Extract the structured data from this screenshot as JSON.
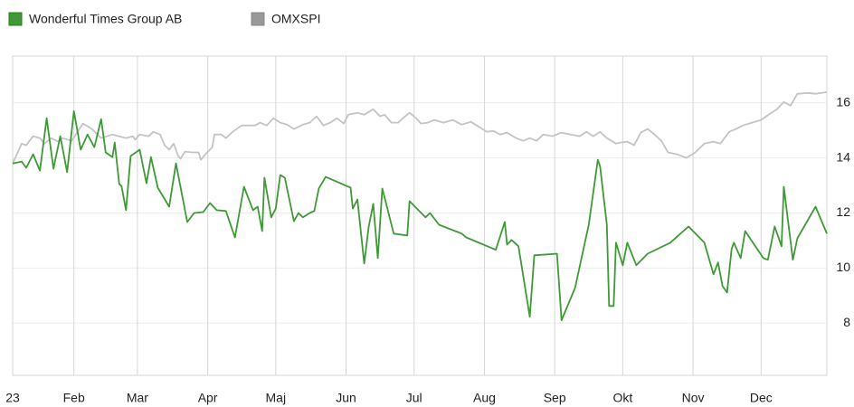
{
  "chart_data": {
    "type": "line",
    "xlim": [
      4,
      363
    ],
    "xticks": [
      {
        "value": 4,
        "label": "23"
      },
      {
        "value": 31,
        "label": "Feb"
      },
      {
        "value": 59,
        "label": "Mar"
      },
      {
        "value": 90,
        "label": "Apr"
      },
      {
        "value": 120,
        "label": "Maj"
      },
      {
        "value": 151,
        "label": "Jun"
      },
      {
        "value": 181,
        "label": "Jul"
      },
      {
        "value": 212,
        "label": "Aug"
      },
      {
        "value": 243,
        "label": "Sep"
      },
      {
        "value": 273,
        "label": "Okt"
      },
      {
        "value": 304,
        "label": "Nov"
      },
      {
        "value": 334,
        "label": "Dec"
      }
    ],
    "ylim": [
      6.1,
      17.7
    ],
    "yticks": [
      8,
      10,
      12,
      14,
      16
    ],
    "grid": true,
    "legend": "top-left",
    "series": [
      {
        "name": "Wonderful Times Group AB",
        "color": "#3d9a35",
        "x": [
          4,
          8,
          10,
          13,
          16,
          19,
          22,
          25,
          28,
          31,
          34,
          37,
          40,
          43,
          45,
          48,
          49,
          51,
          52,
          54,
          56,
          60,
          63,
          65,
          68,
          73,
          76,
          81,
          84,
          88,
          91,
          94,
          98,
          102,
          106,
          110,
          112,
          114,
          115,
          118,
          120,
          122,
          124,
          128,
          130,
          132,
          135,
          137,
          139,
          142,
          153,
          154,
          156,
          159,
          161,
          163,
          165,
          167,
          172,
          178,
          179,
          186,
          188,
          192,
          202,
          204,
          217,
          221,
          222,
          224,
          227,
          232,
          234,
          244,
          246,
          252,
          258,
          262,
          263,
          266,
          267,
          269,
          270,
          273,
          275,
          279,
          284,
          294,
          302,
          309,
          313,
          315,
          317,
          319,
          321,
          322,
          325,
          327,
          335,
          337,
          340,
          343,
          344,
          348,
          350,
          358,
          363
        ],
        "values": [
          13.8,
          13.87,
          13.64,
          14.13,
          13.54,
          15.44,
          13.61,
          14.79,
          13.48,
          15.7,
          14.3,
          14.85,
          14.39,
          15.41,
          14.2,
          14.03,
          14.56,
          13.05,
          12.98,
          12.1,
          14.07,
          14.3,
          13.08,
          14.03,
          12.92,
          12.23,
          13.8,
          11.67,
          12.0,
          12.03,
          12.36,
          12.1,
          12.07,
          11.11,
          12.95,
          12.1,
          12.23,
          11.34,
          13.28,
          11.84,
          12.16,
          13.38,
          13.28,
          11.7,
          12.0,
          11.84,
          12.0,
          12.07,
          12.89,
          13.31,
          12.92,
          12.16,
          12.49,
          10.16,
          11.51,
          12.33,
          10.36,
          12.89,
          11.25,
          11.18,
          12.43,
          11.84,
          12.0,
          11.57,
          11.25,
          11.11,
          10.66,
          11.67,
          10.85,
          11.02,
          10.79,
          8.23,
          10.46,
          10.52,
          8.1,
          9.28,
          11.57,
          13.93,
          13.7,
          11.57,
          8.62,
          8.62,
          10.92,
          10.1,
          10.92,
          10.1,
          10.52,
          10.92,
          11.51,
          10.92,
          9.77,
          10.2,
          9.34,
          9.11,
          10.69,
          10.92,
          10.36,
          11.34,
          10.36,
          10.3,
          11.51,
          10.79,
          12.95,
          10.3,
          11.08,
          12.23,
          11.25
        ]
      },
      {
        "name": "OMXSPI",
        "color": "#c4c4c4",
        "x": [
          4,
          8,
          10,
          13,
          16,
          18,
          21,
          24,
          26,
          30,
          35,
          39,
          43,
          48,
          54,
          57,
          58,
          60,
          64,
          66,
          69,
          71,
          73,
          75,
          77,
          78,
          80,
          83,
          86,
          87,
          89,
          92,
          93,
          96,
          98,
          101,
          105,
          111,
          113,
          116,
          119,
          122,
          125,
          128,
          132,
          135,
          138,
          141,
          144,
          147,
          150,
          152,
          156,
          159,
          163,
          166,
          168,
          171,
          174,
          176,
          179,
          182,
          184,
          187,
          190,
          194,
          198,
          202,
          206,
          210,
          213,
          216,
          219,
          222,
          226,
          229,
          232,
          235,
          238,
          242,
          246,
          250,
          254,
          257,
          260,
          263,
          266,
          270,
          272,
          275,
          278,
          281,
          284,
          287,
          290,
          293,
          297,
          301,
          305,
          309,
          313,
          316,
          320,
          323,
          326,
          330,
          334,
          338,
          341,
          344,
          347,
          350,
          355,
          358,
          363
        ],
        "values": [
          13.8,
          14.52,
          14.46,
          14.79,
          14.72,
          14.52,
          14.72,
          14.59,
          14.72,
          14.62,
          15.25,
          15.05,
          14.72,
          14.85,
          14.72,
          14.79,
          14.66,
          14.85,
          14.79,
          14.95,
          14.85,
          14.46,
          14.3,
          14.52,
          14.07,
          13.97,
          14.23,
          14.2,
          14.2,
          13.93,
          14.13,
          14.39,
          14.85,
          14.85,
          14.72,
          14.95,
          15.18,
          15.18,
          15.28,
          15.18,
          15.44,
          15.28,
          15.21,
          15.05,
          15.21,
          15.28,
          15.51,
          15.18,
          15.28,
          15.44,
          15.25,
          15.57,
          15.64,
          15.57,
          15.77,
          15.51,
          15.57,
          15.28,
          15.28,
          15.44,
          15.64,
          15.44,
          15.25,
          15.28,
          15.38,
          15.28,
          15.38,
          15.21,
          15.31,
          15.11,
          14.95,
          14.98,
          14.85,
          14.92,
          14.72,
          14.62,
          14.72,
          14.62,
          14.85,
          14.79,
          14.92,
          14.85,
          14.79,
          14.95,
          14.79,
          14.95,
          14.72,
          14.52,
          14.56,
          14.59,
          14.46,
          14.92,
          15.05,
          14.85,
          14.62,
          14.2,
          14.13,
          14.0,
          14.2,
          14.52,
          14.59,
          14.52,
          14.95,
          15.05,
          15.18,
          15.28,
          15.38,
          15.61,
          15.77,
          16.03,
          15.9,
          16.33,
          16.36,
          16.33,
          16.39
        ]
      }
    ]
  }
}
